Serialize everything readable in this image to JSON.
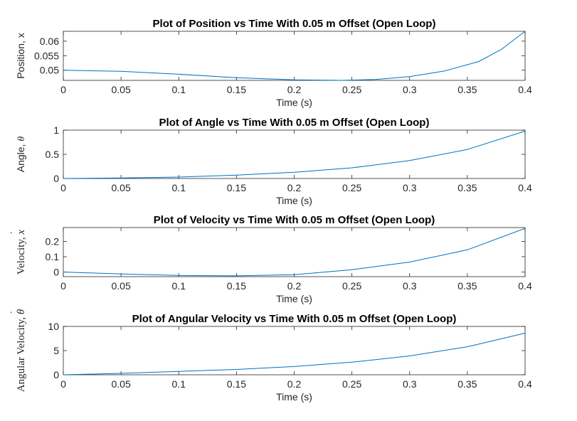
{
  "chart_data": [
    {
      "type": "line",
      "title": "Plot of Position vs Time With 0.05 m Offset (Open Loop)",
      "xlabel": "Time (s)",
      "ylabel": {
        "text": "Position, x",
        "serif": false,
        "symbol": "",
        "accent": ""
      },
      "xlim": [
        0,
        0.4
      ],
      "ylim": [
        0.0465,
        0.0634
      ],
      "xticks": [
        "0",
        "0.05",
        "0.1",
        "0.15",
        "0.2",
        "0.25",
        "0.3",
        "0.35",
        "0.4"
      ],
      "yticks": [
        {
          "v": 0.05,
          "label": "0.05"
        },
        {
          "v": 0.055,
          "label": "0.055"
        },
        {
          "v": 0.06,
          "label": "0.06"
        }
      ],
      "color": "#0072BD",
      "series": [
        {
          "x": [
            0,
            0.05,
            0.1,
            0.15,
            0.2,
            0.24,
            0.27,
            0.3,
            0.33,
            0.36,
            0.38,
            0.4
          ],
          "y": [
            0.05,
            0.0496,
            0.0486,
            0.0474,
            0.0467,
            0.0465,
            0.0468,
            0.0478,
            0.0497,
            0.053,
            0.0573,
            0.0634
          ]
        }
      ]
    },
    {
      "type": "line",
      "title": "Plot of Angle vs Time With 0.05 m Offset (Open Loop)",
      "xlabel": "Time (s)",
      "ylabel": {
        "text": "Angle, ",
        "serif": false,
        "symbol": "θ",
        "accent": ""
      },
      "xlim": [
        0,
        0.4
      ],
      "ylim": [
        0,
        1
      ],
      "xticks": [
        "0",
        "0.05",
        "0.1",
        "0.15",
        "0.2",
        "0.25",
        "0.3",
        "0.35",
        "0.4"
      ],
      "yticks": [
        {
          "v": 0,
          "label": "0"
        },
        {
          "v": 0.5,
          "label": "0.5"
        },
        {
          "v": 1,
          "label": "1"
        }
      ],
      "color": "#0072BD",
      "series": [
        {
          "x": [
            0,
            0.05,
            0.1,
            0.15,
            0.2,
            0.25,
            0.3,
            0.35,
            0.4
          ],
          "y": [
            0,
            0.01,
            0.03,
            0.07,
            0.13,
            0.22,
            0.37,
            0.6,
            0.98
          ]
        }
      ]
    },
    {
      "type": "line",
      "title": "Plot of Velocity vs Time With 0.05 m Offset (Open Loop)",
      "xlabel": "Time (s)",
      "ylabel": {
        "text": "Velocity, ",
        "serif": true,
        "symbol": "x",
        "accent": "˙"
      },
      "xlim": [
        0,
        0.4
      ],
      "ylim": [
        -0.03,
        0.29
      ],
      "xticks": [
        "0",
        "0.05",
        "0.1",
        "0.15",
        "0.2",
        "0.25",
        "0.3",
        "0.35",
        "0.4"
      ],
      "yticks": [
        {
          "v": 0,
          "label": "0"
        },
        {
          "v": 0.1,
          "label": "0.1"
        },
        {
          "v": 0.2,
          "label": "0.2"
        }
      ],
      "color": "#0072BD",
      "series": [
        {
          "x": [
            0,
            0.05,
            0.1,
            0.15,
            0.2,
            0.25,
            0.3,
            0.35,
            0.4
          ],
          "y": [
            0.0,
            -0.013,
            -0.022,
            -0.025,
            -0.017,
            0.015,
            0.065,
            0.145,
            0.285
          ]
        }
      ]
    },
    {
      "type": "line",
      "title": "Plot of Angular Velocity vs Time With 0.05 m Offset (Open Loop)",
      "xlabel": "Time (s)",
      "ylabel": {
        "text": "Angular Velocity, ",
        "serif": true,
        "symbol": "θ",
        "accent": "˙"
      },
      "xlim": [
        0,
        0.4
      ],
      "ylim": [
        0,
        10
      ],
      "xticks": [
        "0",
        "0.05",
        "0.1",
        "0.15",
        "0.2",
        "0.25",
        "0.3",
        "0.35",
        "0.4"
      ],
      "yticks": [
        {
          "v": 0,
          "label": "0"
        },
        {
          "v": 5,
          "label": "5"
        },
        {
          "v": 10,
          "label": "10"
        }
      ],
      "color": "#0072BD",
      "series": [
        {
          "x": [
            0,
            0.05,
            0.1,
            0.15,
            0.2,
            0.25,
            0.3,
            0.35,
            0.4
          ],
          "y": [
            0,
            0.3,
            0.7,
            1.1,
            1.7,
            2.6,
            3.9,
            5.8,
            8.6
          ]
        }
      ]
    }
  ]
}
